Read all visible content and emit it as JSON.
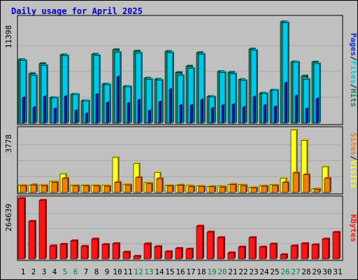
{
  "chart_data": {
    "type": "bar",
    "title": "Daily usage for April 2025",
    "categories": [
      "1",
      "2",
      "3",
      "4",
      "5",
      "6",
      "7",
      "8",
      "9",
      "10",
      "11",
      "12",
      "13",
      "14",
      "15",
      "16",
      "17",
      "18",
      "19",
      "20",
      "21",
      "22",
      "23",
      "24",
      "25",
      "26",
      "27",
      "28",
      "29",
      "30",
      "31"
    ],
    "weekend_days": [
      5,
      6,
      12,
      13,
      19,
      20,
      26,
      27
    ],
    "colors": {
      "hits": "#1e8060",
      "files": "#00c8e8",
      "pages": "#1030e0",
      "visits": "#ffff20",
      "sites": "#f08010",
      "kbytes": "#ff1414",
      "title": "#0000c0",
      "weekend_label": "#008040",
      "panel_bg": "#c0c0c0"
    },
    "panels": [
      {
        "id": "hits-files-pages",
        "ymax_label": "11398",
        "ymax": 11398,
        "legend": [
          {
            "label": "Hits",
            "color": "#1e8060"
          },
          {
            "label": "Files",
            "color": "#00c8e8"
          },
          {
            "label": "Pages",
            "color": "#1030e0"
          }
        ],
        "series": [
          {
            "name": "Hits",
            "values": [
              7000,
              5450,
              6560,
              2810,
              7520,
              3180,
              2460,
              7590,
              4300,
              8090,
              4040,
              7930,
              4960,
              4830,
              7890,
              5570,
              6280,
              7760,
              2940,
              5680,
              5600,
              4790,
              8150,
              3300,
              3630,
              11160,
              6750,
              5190,
              6720,
              null,
              null
            ]
          },
          {
            "name": "Files",
            "values": [
              6880,
              5250,
              6340,
              2780,
              7410,
              3160,
              2450,
              7440,
              4230,
              7780,
              4000,
              7710,
              4830,
              4720,
              7740,
              5250,
              6030,
              7590,
              2880,
              5590,
              5420,
              4690,
              8010,
              3250,
              3620,
              11050,
              6700,
              4820,
              6550,
              null,
              null
            ]
          },
          {
            "name": "Pages",
            "values": [
              2800,
              1720,
              2900,
              1580,
              2930,
              1380,
              1030,
              3160,
              2250,
              5080,
              2180,
              2530,
              1360,
              2320,
              3720,
              1960,
              1950,
              2560,
              1630,
              1950,
              2040,
              1750,
              2890,
              1950,
              1800,
              4420,
              2990,
              1580,
              2680,
              null,
              null
            ]
          }
        ]
      },
      {
        "id": "visits-sites",
        "ymax_label": "3778",
        "ymax": 3778,
        "legend": [
          {
            "label": "Visits",
            "color": "#ffff20"
          },
          {
            "label": "Sites",
            "color": "#f08010"
          }
        ],
        "series": [
          {
            "name": "Visits",
            "values": [
              430,
              450,
              450,
              660,
              1110,
              430,
              430,
              430,
              430,
              2080,
              490,
              1710,
              590,
              1190,
              430,
              430,
              430,
              390,
              350,
              390,
              490,
              470,
              310,
              410,
              460,
              840,
              3710,
              3090,
              220,
              1530,
              null
            ]
          },
          {
            "name": "Sites",
            "values": [
              400,
              450,
              400,
              600,
              830,
              390,
              390,
              390,
              370,
              600,
              440,
              890,
              530,
              820,
              390,
              430,
              350,
              350,
              340,
              320,
              470,
              410,
              270,
              370,
              410,
              590,
              1160,
              1060,
              190,
              840,
              null
            ]
          }
        ]
      },
      {
        "id": "kbytes",
        "ymax_label": "264639",
        "ymax": 264639,
        "legend": [
          {
            "label": "KBytes",
            "color": "#ff1414"
          }
        ],
        "series": [
          {
            "name": "KBytes",
            "values": [
              263000,
              164000,
              255000,
              57000,
              64000,
              79000,
              55000,
              87000,
              63000,
              67000,
              30000,
              12000,
              66000,
              54000,
              32000,
              46000,
              43000,
              143000,
              117000,
              93000,
              27000,
              52000,
              93000,
              52000,
              65000,
              19000,
              57000,
              67000,
              62000,
              87000,
              116000
            ]
          }
        ]
      }
    ]
  }
}
